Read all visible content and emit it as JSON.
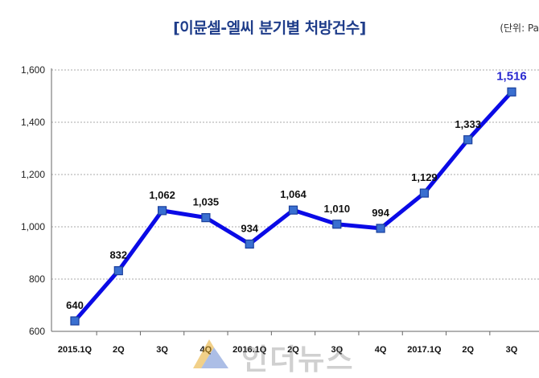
{
  "header": {
    "title": "[이뮨셀-엘씨 분기별 처방건수]",
    "unit": "(단위: Pa"
  },
  "watermark": {
    "text": "인더뉴스"
  },
  "colors": {
    "line": "#0a0ae6",
    "marker": "#3a6fd0",
    "title": "#1f3d8a",
    "grid": "#aaaaaa",
    "last_label": "#2a2ad0"
  },
  "chart_data": {
    "type": "line",
    "title": "[이뮨셀-엘씨 분기별 처방건수]",
    "xlabel": "",
    "ylabel": "",
    "categories": [
      "2015.1Q",
      "2Q",
      "3Q",
      "4Q",
      "2016.1Q",
      "2Q",
      "3Q",
      "4Q",
      "2017.1Q",
      "2Q",
      "3Q"
    ],
    "values": [
      640,
      832,
      1062,
      1035,
      934,
      1064,
      1010,
      994,
      1129,
      1333,
      1516
    ],
    "value_labels": [
      "640",
      "832",
      "1,062",
      "1,035",
      "934",
      "1,064",
      "1,010",
      "994",
      "1,129",
      "1,333",
      "1,516"
    ],
    "ylim": [
      600,
      1600
    ],
    "yticks": [
      600,
      800,
      1000,
      1200,
      1400,
      1600
    ],
    "ytick_labels": [
      "600",
      "800",
      "1,000",
      "1,200",
      "1,400",
      "1,600"
    ],
    "grid": true,
    "legend": "none"
  }
}
